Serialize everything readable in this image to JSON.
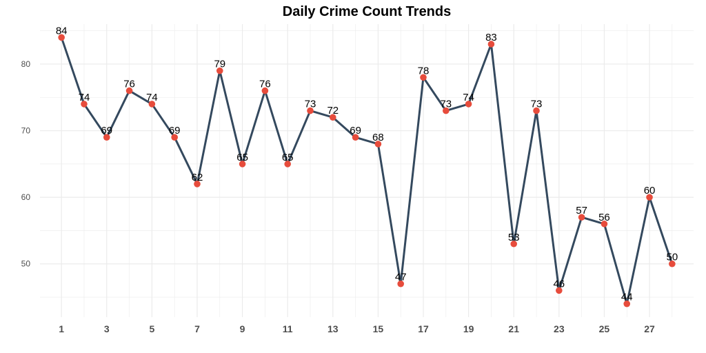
{
  "chart_data": {
    "type": "line",
    "title": "Daily Crime Count Trends",
    "xlabel": "",
    "ylabel": "",
    "x": [
      1,
      2,
      3,
      4,
      5,
      6,
      7,
      8,
      9,
      10,
      11,
      12,
      13,
      14,
      15,
      16,
      17,
      18,
      19,
      20,
      21,
      22,
      23,
      24,
      25,
      26,
      27,
      28
    ],
    "values": [
      84,
      74,
      69,
      76,
      74,
      69,
      62,
      79,
      65,
      76,
      65,
      73,
      72,
      69,
      68,
      47,
      78,
      73,
      74,
      83,
      53,
      73,
      46,
      57,
      56,
      44,
      60,
      50
    ],
    "x_tick_labels": [
      "1",
      "3",
      "5",
      "7",
      "9",
      "11",
      "13",
      "15",
      "17",
      "19",
      "21",
      "23",
      "25",
      "27"
    ],
    "y_ticks": [
      50,
      60,
      70,
      80
    ],
    "xlim": [
      0.05,
      28.95
    ],
    "ylim": [
      42,
      86
    ],
    "grid": true,
    "legend": "none",
    "colors": {
      "line": "#34495e",
      "point": "#e74c3c",
      "grid": "#ebebeb"
    }
  }
}
